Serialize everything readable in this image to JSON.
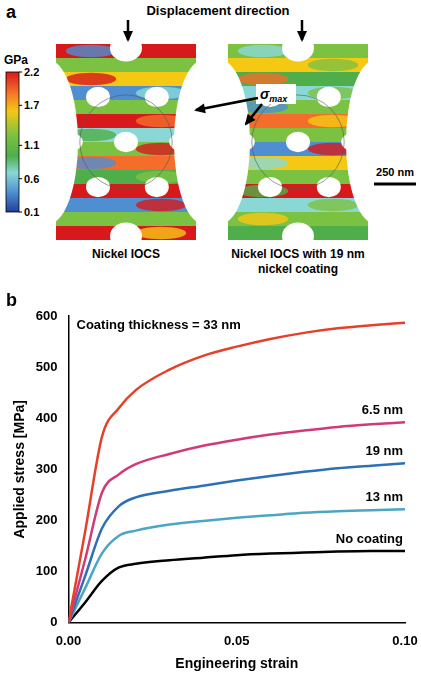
{
  "panel_letters": [
    "a",
    "b"
  ],
  "panel_a": {
    "title": "Displacement direction",
    "colorbar": {
      "unit": "GPa",
      "range": [
        0.1,
        2.2
      ],
      "ticks": [
        2.2,
        1.7,
        1.1,
        0.6,
        0.1
      ]
    },
    "annotation": {
      "symbol": "σ",
      "subscript": "max"
    },
    "scale_bar": "250 nm",
    "images": [
      "Nickel IOCS",
      "Nickel IOCS with 19 nm nickel coating"
    ]
  },
  "chart_data": {
    "type": "line",
    "x_label": "Engineering strain",
    "y_label": "Applied stress [MPa]",
    "x": [
      0,
      0.005,
      0.01,
      0.015,
      0.02,
      0.03,
      0.04,
      0.05,
      0.06,
      0.07,
      0.08,
      0.09,
      0.1
    ],
    "series": [
      {
        "name": "Coating thickness = 33 nm",
        "color": "#e5402a",
        "values": [
          0,
          180,
          365,
          420,
          455,
          495,
          522,
          540,
          555,
          567,
          576,
          582,
          587
        ]
      },
      {
        "name": "6.5 nm",
        "color": "#d13a78",
        "values": [
          0,
          125,
          255,
          290,
          310,
          330,
          346,
          358,
          368,
          376,
          383,
          388,
          392
        ]
      },
      {
        "name": "19 nm",
        "color": "#2e6fb5",
        "values": [
          0,
          92,
          185,
          228,
          245,
          258,
          268,
          278,
          287,
          295,
          302,
          307,
          312
        ]
      },
      {
        "name": "13 nm",
        "color": "#4aa6c2",
        "values": [
          0,
          68,
          136,
          170,
          180,
          192,
          199,
          205,
          210,
          215,
          218,
          220,
          222
        ]
      },
      {
        "name": "No coating",
        "color": "#000000",
        "values": [
          0,
          40,
          82,
          108,
          115,
          122,
          127,
          132,
          135,
          137,
          139,
          140,
          140
        ]
      }
    ],
    "xlim": [
      0,
      0.1
    ],
    "xticks": [
      {
        "value": 0,
        "label": "0.00"
      },
      {
        "value": 0.05,
        "label": "0.05"
      },
      {
        "value": 0.1,
        "label": "0.10"
      }
    ],
    "ylim": [
      0,
      600
    ],
    "yticks": [
      0,
      100,
      200,
      300,
      400,
      500,
      600
    ],
    "grid": false
  }
}
